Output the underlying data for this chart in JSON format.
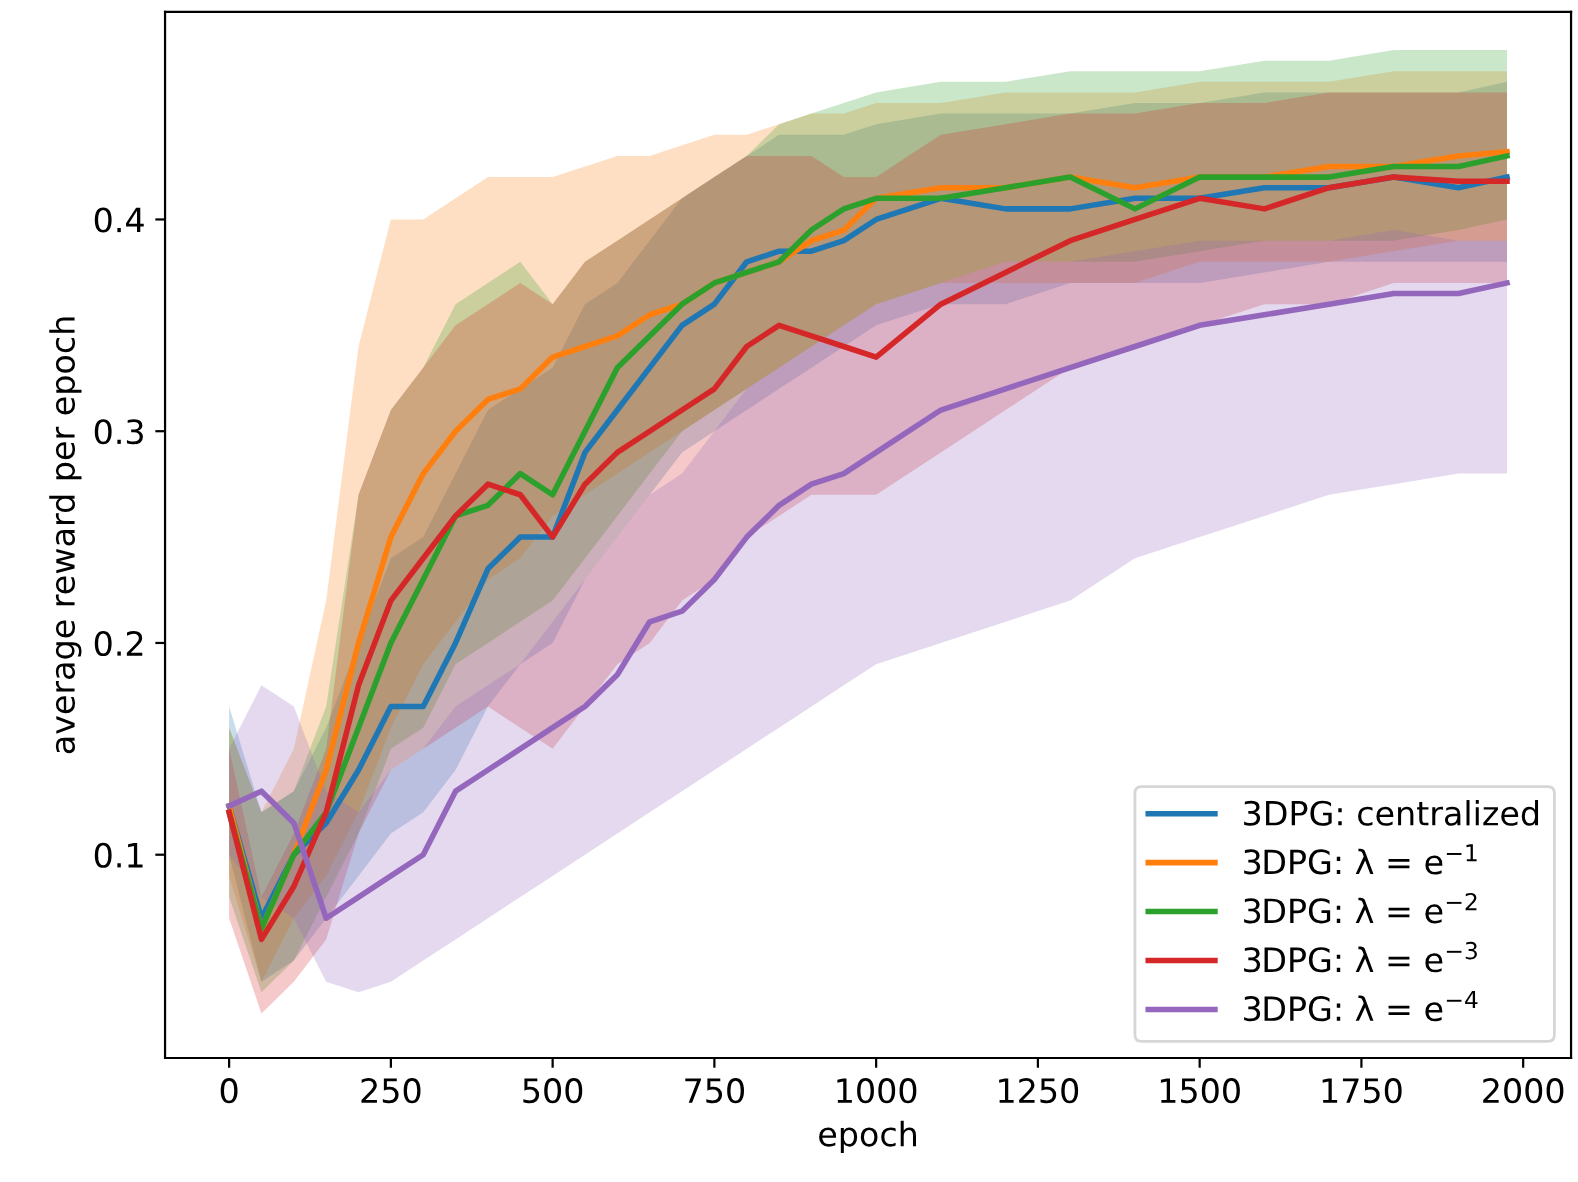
{
  "chart_data": {
    "type": "line",
    "xlabel": "epoch",
    "ylabel": "average reward per epoch",
    "x": [
      0,
      50,
      100,
      150,
      200,
      250,
      300,
      350,
      400,
      450,
      500,
      550,
      600,
      650,
      700,
      750,
      800,
      850,
      900,
      950,
      1000,
      1100,
      1200,
      1300,
      1400,
      1500,
      1600,
      1700,
      1800,
      1900,
      1975
    ],
    "xlim": [
      -99,
      2074
    ],
    "xticks": [
      0,
      250,
      500,
      750,
      1000,
      1250,
      1500,
      1750,
      2000
    ],
    "ylim": [
      0.004,
      0.498
    ],
    "yticks": [
      0.1,
      0.2,
      0.3,
      0.4
    ],
    "grid": false,
    "legend": "bottom right",
    "marker": "none",
    "line_style": "solid",
    "series": [
      {
        "name": "3DPG: centralized",
        "color": "#1f77b4",
        "values": [
          0.123,
          0.07,
          0.1,
          0.115,
          0.14,
          0.17,
          0.17,
          0.2,
          0.235,
          0.25,
          0.25,
          0.29,
          0.31,
          0.33,
          0.35,
          0.36,
          0.38,
          0.385,
          0.385,
          0.39,
          0.4,
          0.41,
          0.405,
          0.405,
          0.41,
          0.41,
          0.415,
          0.415,
          0.42,
          0.415,
          0.42
        ],
        "lower": [
          0.1,
          0.04,
          0.05,
          0.07,
          0.09,
          0.11,
          0.12,
          0.14,
          0.17,
          0.19,
          0.2,
          0.23,
          0.25,
          0.27,
          0.29,
          0.3,
          0.31,
          0.32,
          0.33,
          0.34,
          0.35,
          0.36,
          0.36,
          0.37,
          0.37,
          0.37,
          0.375,
          0.38,
          0.38,
          0.38,
          0.38
        ],
        "upper": [
          0.17,
          0.12,
          0.13,
          0.16,
          0.2,
          0.24,
          0.25,
          0.28,
          0.31,
          0.32,
          0.33,
          0.36,
          0.37,
          0.39,
          0.41,
          0.42,
          0.43,
          0.44,
          0.44,
          0.44,
          0.445,
          0.45,
          0.45,
          0.45,
          0.455,
          0.455,
          0.46,
          0.46,
          0.46,
          0.46,
          0.465
        ]
      },
      {
        "name": "3DPG: λ = e$^{−1}$",
        "color": "#ff7f0e",
        "values": [
          0.123,
          0.065,
          0.1,
          0.14,
          0.2,
          0.25,
          0.28,
          0.3,
          0.315,
          0.32,
          0.335,
          0.34,
          0.345,
          0.355,
          0.36,
          0.37,
          0.375,
          0.38,
          0.39,
          0.395,
          0.41,
          0.415,
          0.415,
          0.42,
          0.415,
          0.42,
          0.42,
          0.425,
          0.425,
          0.43,
          0.432
        ],
        "lower": [
          0.09,
          0.04,
          0.07,
          0.09,
          0.12,
          0.16,
          0.19,
          0.21,
          0.23,
          0.24,
          0.26,
          0.27,
          0.28,
          0.29,
          0.3,
          0.31,
          0.32,
          0.33,
          0.34,
          0.35,
          0.36,
          0.37,
          0.37,
          0.37,
          0.37,
          0.38,
          0.38,
          0.38,
          0.385,
          0.39,
          0.39
        ],
        "upper": [
          0.16,
          0.12,
          0.15,
          0.22,
          0.34,
          0.4,
          0.4,
          0.41,
          0.42,
          0.42,
          0.42,
          0.425,
          0.43,
          0.43,
          0.435,
          0.44,
          0.44,
          0.445,
          0.45,
          0.45,
          0.455,
          0.455,
          0.46,
          0.46,
          0.46,
          0.465,
          0.465,
          0.465,
          0.47,
          0.47,
          0.47
        ]
      },
      {
        "name": "3DPG: λ = e$^{−2}$",
        "color": "#2ca02c",
        "values": [
          0.12,
          0.065,
          0.1,
          0.12,
          0.16,
          0.2,
          0.23,
          0.26,
          0.265,
          0.28,
          0.27,
          0.3,
          0.33,
          0.345,
          0.36,
          0.37,
          0.375,
          0.38,
          0.395,
          0.405,
          0.41,
          0.41,
          0.415,
          0.42,
          0.405,
          0.42,
          0.42,
          0.42,
          0.425,
          0.425,
          0.43
        ],
        "lower": [
          0.08,
          0.035,
          0.05,
          0.08,
          0.11,
          0.15,
          0.16,
          0.19,
          0.2,
          0.21,
          0.22,
          0.24,
          0.26,
          0.28,
          0.3,
          0.31,
          0.32,
          0.33,
          0.34,
          0.35,
          0.36,
          0.37,
          0.38,
          0.38,
          0.38,
          0.385,
          0.39,
          0.39,
          0.39,
          0.395,
          0.4
        ],
        "upper": [
          0.16,
          0.12,
          0.13,
          0.17,
          0.27,
          0.31,
          0.33,
          0.36,
          0.37,
          0.38,
          0.36,
          0.38,
          0.39,
          0.4,
          0.41,
          0.42,
          0.43,
          0.445,
          0.45,
          0.455,
          0.46,
          0.465,
          0.465,
          0.47,
          0.47,
          0.47,
          0.475,
          0.475,
          0.48,
          0.48,
          0.48
        ]
      },
      {
        "name": "3DPG: λ = e$^{−3}$",
        "color": "#d62728",
        "values": [
          0.12,
          0.06,
          0.085,
          0.12,
          0.18,
          0.22,
          0.24,
          0.26,
          0.275,
          0.27,
          0.25,
          0.275,
          0.29,
          0.3,
          0.31,
          0.32,
          0.34,
          0.35,
          0.345,
          0.34,
          0.335,
          0.36,
          0.375,
          0.39,
          0.4,
          0.41,
          0.405,
          0.415,
          0.42,
          0.418,
          0.418
        ],
        "lower": [
          0.07,
          0.025,
          0.04,
          0.06,
          0.11,
          0.14,
          0.15,
          0.16,
          0.17,
          0.16,
          0.15,
          0.17,
          0.19,
          0.2,
          0.22,
          0.23,
          0.25,
          0.26,
          0.27,
          0.27,
          0.27,
          0.29,
          0.31,
          0.33,
          0.34,
          0.35,
          0.36,
          0.36,
          0.37,
          0.37,
          0.37
        ],
        "upper": [
          0.15,
          0.08,
          0.11,
          0.15,
          0.27,
          0.31,
          0.33,
          0.35,
          0.36,
          0.37,
          0.36,
          0.38,
          0.39,
          0.4,
          0.41,
          0.42,
          0.43,
          0.43,
          0.43,
          0.42,
          0.42,
          0.44,
          0.445,
          0.45,
          0.45,
          0.455,
          0.455,
          0.46,
          0.46,
          0.46,
          0.46
        ]
      },
      {
        "name": "3DPG: λ = e$^{−4}$",
        "color": "#9467bd",
        "values": [
          0.123,
          0.13,
          0.115,
          0.07,
          0.08,
          0.09,
          0.1,
          0.13,
          0.14,
          0.15,
          0.16,
          0.17,
          0.185,
          0.21,
          0.215,
          0.23,
          0.25,
          0.265,
          0.275,
          0.28,
          0.29,
          0.31,
          0.32,
          0.33,
          0.34,
          0.35,
          0.355,
          0.36,
          0.365,
          0.365,
          0.37
        ],
        "lower": [
          0.1,
          0.08,
          0.07,
          0.04,
          0.035,
          0.04,
          0.05,
          0.06,
          0.07,
          0.08,
          0.09,
          0.1,
          0.11,
          0.12,
          0.13,
          0.14,
          0.15,
          0.16,
          0.17,
          0.18,
          0.19,
          0.2,
          0.21,
          0.22,
          0.24,
          0.25,
          0.26,
          0.27,
          0.275,
          0.28,
          0.28
        ],
        "upper": [
          0.15,
          0.18,
          0.17,
          0.13,
          0.12,
          0.14,
          0.15,
          0.17,
          0.18,
          0.19,
          0.21,
          0.23,
          0.25,
          0.27,
          0.28,
          0.3,
          0.32,
          0.33,
          0.34,
          0.35,
          0.36,
          0.37,
          0.38,
          0.38,
          0.385,
          0.39,
          0.39,
          0.39,
          0.395,
          0.39,
          0.39
        ]
      }
    ]
  }
}
